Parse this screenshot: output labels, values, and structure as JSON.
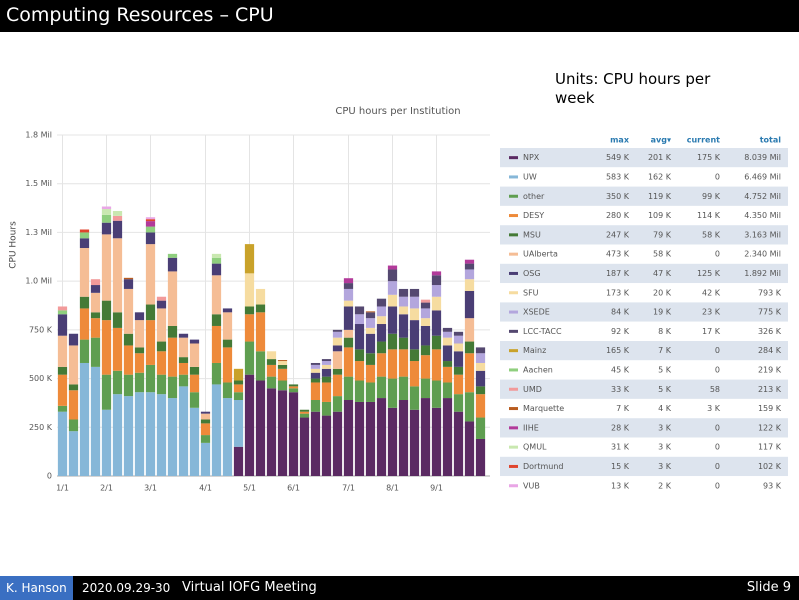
{
  "slide": {
    "title": "Computing Resources – CPU",
    "units": "Units: CPU hours per week",
    "author": "K. Hanson",
    "date": "2020.09.29-30",
    "meeting": "Virtual IOFG Meeting",
    "slide_number": "Slide 9"
  },
  "chart_data": {
    "type": "stacked-bar",
    "title": "CPU hours per Institution",
    "y_label": "CPU Hours",
    "grid": true,
    "categories": [
      "1/1",
      null,
      null,
      null,
      "2/1",
      null,
      null,
      null,
      "3/1",
      null,
      null,
      null,
      null,
      "4/1",
      null,
      null,
      null,
      "5/1",
      null,
      null,
      null,
      "6/1",
      null,
      null,
      null,
      null,
      "7/1",
      null,
      null,
      null,
      "8/1",
      null,
      null,
      null,
      "9/1",
      null,
      null,
      null,
      null
    ],
    "ylim": [
      0,
      1750000
    ],
    "yticks": [
      0,
      {
        "value": 250000,
        "label": "250 K"
      },
      {
        "value": 500000,
        "label": "500 K"
      },
      {
        "value": 750000,
        "label": "750 K"
      },
      {
        "value": 1000000,
        "label": "1.0 Mil"
      },
      {
        "value": 1250000,
        "label": "1.3 Mil"
      },
      {
        "value": 1500000,
        "label": "1.5 Mil"
      },
      {
        "value": 1750000,
        "label": "1.8 Mil"
      }
    ],
    "series": [
      {
        "name": "NPX",
        "color": "#5b2a63",
        "values": [
          0,
          0,
          0,
          0,
          0,
          0,
          0,
          0,
          0,
          0,
          0,
          0,
          0,
          0,
          0,
          0,
          150000,
          520000,
          490000,
          450000,
          440000,
          430000,
          300000,
          330000,
          310000,
          330000,
          390000,
          380000,
          380000,
          400000,
          350000,
          390000,
          340000,
          400000,
          350000,
          400000,
          330000,
          280000,
          190000
        ]
      },
      {
        "name": "UW",
        "color": "#86b7d8",
        "values": [
          330000,
          230000,
          580000,
          560000,
          340000,
          420000,
          410000,
          430000,
          430000,
          420000,
          400000,
          460000,
          350000,
          170000,
          470000,
          400000,
          240000,
          0,
          0,
          0,
          0,
          0,
          0,
          0,
          0,
          0,
          0,
          0,
          0,
          0,
          0,
          0,
          0,
          0,
          0,
          0,
          0,
          0,
          0
        ]
      },
      {
        "name": "other",
        "color": "#5f9e50",
        "values": [
          30000,
          60000,
          120000,
          150000,
          180000,
          120000,
          110000,
          100000,
          140000,
          100000,
          110000,
          60000,
          80000,
          40000,
          110000,
          80000,
          40000,
          170000,
          150000,
          60000,
          50000,
          20000,
          20000,
          60000,
          70000,
          80000,
          120000,
          110000,
          100000,
          110000,
          150000,
          120000,
          120000,
          100000,
          140000,
          80000,
          90000,
          150000,
          110000
        ]
      },
      {
        "name": "DESY",
        "color": "#ee8a3a",
        "values": [
          160000,
          150000,
          160000,
          100000,
          280000,
          220000,
          150000,
          100000,
          230000,
          120000,
          200000,
          60000,
          90000,
          60000,
          190000,
          180000,
          40000,
          140000,
          200000,
          60000,
          60000,
          10000,
          10000,
          90000,
          100000,
          110000,
          150000,
          100000,
          90000,
          120000,
          150000,
          140000,
          130000,
          120000,
          160000,
          80000,
          100000,
          200000,
          120000
        ]
      },
      {
        "name": "MSU",
        "color": "#447a36",
        "values": [
          40000,
          30000,
          60000,
          30000,
          100000,
          80000,
          60000,
          30000,
          80000,
          50000,
          60000,
          30000,
          40000,
          20000,
          60000,
          40000,
          20000,
          40000,
          40000,
          30000,
          20000,
          10000,
          10000,
          20000,
          30000,
          30000,
          50000,
          60000,
          60000,
          60000,
          80000,
          60000,
          60000,
          50000,
          70000,
          30000,
          40000,
          60000,
          40000
        ]
      },
      {
        "name": "UAlberta",
        "color": "#f5bd95",
        "values": [
          160000,
          200000,
          250000,
          100000,
          340000,
          380000,
          230000,
          140000,
          310000,
          170000,
          280000,
          100000,
          120000,
          30000,
          200000,
          140000,
          0,
          0,
          0,
          0,
          0,
          0,
          0,
          0,
          0,
          90000,
          40000,
          0,
          0,
          0,
          0,
          0,
          0,
          0,
          0,
          0,
          0,
          120000,
          0
        ]
      },
      {
        "name": "OSG",
        "color": "#4a3e75",
        "values": [
          110000,
          60000,
          50000,
          40000,
          60000,
          90000,
          50000,
          40000,
          60000,
          40000,
          70000,
          20000,
          20000,
          10000,
          60000,
          20000,
          0,
          0,
          0,
          0,
          0,
          0,
          0,
          30000,
          40000,
          30000,
          120000,
          130000,
          100000,
          90000,
          140000,
          120000,
          150000,
          100000,
          130000,
          80000,
          80000,
          140000,
          80000
        ]
      },
      {
        "name": "SFU",
        "color": "#f6dca0",
        "values": [
          0,
          0,
          0,
          0,
          0,
          0,
          0,
          0,
          0,
          0,
          0,
          0,
          0,
          0,
          0,
          0,
          0,
          170000,
          80000,
          40000,
          20000,
          0,
          0,
          20000,
          20000,
          40000,
          30000,
          0,
          30000,
          40000,
          60000,
          40000,
          60000,
          40000,
          70000,
          40000,
          40000,
          60000,
          40000
        ]
      },
      {
        "name": "XSEDE",
        "color": "#b3a6dd",
        "values": [
          0,
          0,
          0,
          0,
          0,
          0,
          0,
          0,
          0,
          0,
          0,
          0,
          0,
          0,
          0,
          0,
          0,
          0,
          0,
          0,
          0,
          0,
          0,
          20000,
          20000,
          30000,
          60000,
          50000,
          50000,
          50000,
          70000,
          50000,
          60000,
          50000,
          60000,
          30000,
          40000,
          50000,
          50000
        ]
      },
      {
        "name": "LCC-TACC",
        "color": "#544870",
        "values": [
          0,
          0,
          0,
          0,
          0,
          0,
          0,
          0,
          0,
          0,
          0,
          0,
          0,
          0,
          0,
          0,
          0,
          0,
          0,
          0,
          0,
          0,
          0,
          10000,
          10000,
          10000,
          30000,
          40000,
          30000,
          40000,
          60000,
          40000,
          40000,
          30000,
          50000,
          20000,
          20000,
          30000,
          30000
        ]
      },
      {
        "name": "Mainz",
        "color": "#c9a22a",
        "values": [
          0,
          0,
          0,
          0,
          0,
          0,
          0,
          0,
          0,
          0,
          0,
          0,
          0,
          0,
          0,
          0,
          60000,
          150000,
          0,
          0,
          0,
          0,
          0,
          0,
          0,
          0,
          0,
          0,
          0,
          0,
          0,
          0,
          0,
          0,
          0,
          0,
          0,
          0,
          0
        ]
      },
      {
        "name": "Aachen",
        "color": "#8fcf7e",
        "values": [
          20000,
          0,
          30000,
          0,
          40000,
          0,
          0,
          0,
          30000,
          0,
          20000,
          0,
          0,
          0,
          30000,
          0,
          0,
          0,
          0,
          0,
          0,
          0,
          0,
          0,
          0,
          0,
          0,
          0,
          0,
          0,
          0,
          0,
          0,
          0,
          0,
          0,
          0,
          0,
          0
        ]
      },
      {
        "name": "UMD",
        "color": "#f29a9a",
        "values": [
          20000,
          0,
          0,
          30000,
          0,
          25000,
          0,
          0,
          0,
          20000,
          0,
          0,
          0,
          0,
          0,
          0,
          0,
          0,
          0,
          0,
          0,
          0,
          0,
          0,
          0,
          0,
          0,
          0,
          0,
          0,
          0,
          0,
          0,
          15000,
          0,
          0,
          0,
          0,
          0
        ]
      },
      {
        "name": "Marquette",
        "color": "#b85c20",
        "values": [
          0,
          0,
          0,
          0,
          0,
          0,
          7000,
          0,
          0,
          0,
          0,
          0,
          0,
          0,
          0,
          0,
          0,
          0,
          0,
          0,
          5000,
          0,
          0,
          0,
          0,
          0,
          0,
          0,
          5000,
          0,
          0,
          0,
          0,
          0,
          0,
          0,
          0,
          0,
          0
        ]
      },
      {
        "name": "IIHE",
        "color": "#b23a9a",
        "values": [
          0,
          0,
          0,
          0,
          0,
          0,
          0,
          0,
          28000,
          0,
          0,
          0,
          0,
          0,
          0,
          0,
          0,
          0,
          0,
          0,
          0,
          0,
          0,
          0,
          0,
          0,
          25000,
          0,
          0,
          0,
          20000,
          0,
          0,
          0,
          20000,
          0,
          0,
          20000,
          0
        ]
      },
      {
        "name": "QMUL",
        "color": "#c9e8b0",
        "values": [
          0,
          0,
          0,
          0,
          30000,
          25000,
          0,
          0,
          0,
          0,
          0,
          0,
          0,
          0,
          20000,
          0,
          0,
          0,
          0,
          0,
          0,
          0,
          0,
          0,
          0,
          0,
          0,
          0,
          0,
          0,
          0,
          0,
          0,
          0,
          0,
          0,
          0,
          0,
          0
        ]
      },
      {
        "name": "Dortmund",
        "color": "#e0452e",
        "values": [
          0,
          0,
          15000,
          0,
          0,
          0,
          0,
          0,
          10000,
          0,
          0,
          0,
          0,
          0,
          0,
          0,
          0,
          0,
          0,
          0,
          0,
          0,
          0,
          0,
          0,
          0,
          0,
          0,
          0,
          0,
          0,
          0,
          0,
          0,
          0,
          0,
          0,
          0,
          0
        ]
      },
      {
        "name": "VUB",
        "color": "#e9a6e6",
        "values": [
          0,
          0,
          0,
          0,
          13000,
          0,
          0,
          0,
          10000,
          0,
          0,
          0,
          0,
          0,
          0,
          0,
          0,
          0,
          0,
          0,
          0,
          0,
          0,
          0,
          0,
          0,
          0,
          0,
          0,
          0,
          0,
          0,
          0,
          0,
          0,
          0,
          0,
          0,
          0
        ]
      }
    ]
  },
  "table": {
    "header": [
      "max",
      "avg▾",
      "current",
      "total"
    ],
    "rows": [
      [
        "549 K",
        "201 K",
        "175 K",
        "8.039 Mil"
      ],
      [
        "583 K",
        "162 K",
        "0",
        "6.469 Mil"
      ],
      [
        "350 K",
        "119 K",
        "99 K",
        "4.752 Mil"
      ],
      [
        "280 K",
        "109 K",
        "114 K",
        "4.350 Mil"
      ],
      [
        "247 K",
        "79 K",
        "58 K",
        "3.163 Mil"
      ],
      [
        "473 K",
        "58 K",
        "0",
        "2.340 Mil"
      ],
      [
        "187 K",
        "47 K",
        "125 K",
        "1.892 Mil"
      ],
      [
        "173 K",
        "20 K",
        "42 K",
        "793 K"
      ],
      [
        "84 K",
        "19 K",
        "23 K",
        "775 K"
      ],
      [
        "92 K",
        "8 K",
        "17 K",
        "326 K"
      ],
      [
        "165 K",
        "7 K",
        "0",
        "284 K"
      ],
      [
        "45 K",
        "5 K",
        "0",
        "219 K"
      ],
      [
        "33 K",
        "5 K",
        "58",
        "213 K"
      ],
      [
        "7 K",
        "4 K",
        "3 K",
        "159 K"
      ],
      [
        "28 K",
        "3 K",
        "0",
        "122 K"
      ],
      [
        "31 K",
        "3 K",
        "0",
        "117 K"
      ],
      [
        "15 K",
        "3 K",
        "0",
        "102 K"
      ],
      [
        "13 K",
        "2 K",
        "0",
        "93 K"
      ]
    ]
  }
}
